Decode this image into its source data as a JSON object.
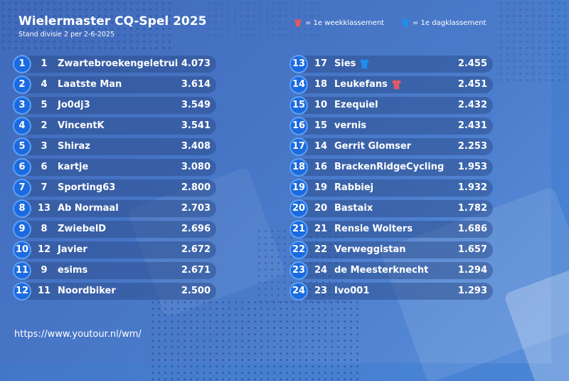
{
  "header": {
    "title": "Wielermaster CQ-Spel 2025",
    "subtitle": "Stand divisie 2 per 2-6-2025"
  },
  "legend": {
    "week": "= 1e weekklassement",
    "day": "= 1e dagklassement",
    "week_icon": "red-jersey-icon",
    "day_icon": "blue-jersey-icon",
    "week_color": "#e05a63",
    "day_color": "#1e8ef0"
  },
  "left": [
    {
      "pos": "1",
      "prev": "1",
      "name": "Zwartebroekengeletrui",
      "score": "4.073"
    },
    {
      "pos": "2",
      "prev": "4",
      "name": "Laatste Man",
      "score": "3.614"
    },
    {
      "pos": "3",
      "prev": "5",
      "name": "Jo0dj3",
      "score": "3.549"
    },
    {
      "pos": "4",
      "prev": "2",
      "name": "VincentK",
      "score": "3.541"
    },
    {
      "pos": "5",
      "prev": "3",
      "name": "Shiraz",
      "score": "3.408"
    },
    {
      "pos": "6",
      "prev": "6",
      "name": "kartje",
      "score": "3.080"
    },
    {
      "pos": "7",
      "prev": "7",
      "name": "Sporting63",
      "score": "2.800"
    },
    {
      "pos": "8",
      "prev": "13",
      "name": "Ab Normaal",
      "score": "2.703"
    },
    {
      "pos": "9",
      "prev": "8",
      "name": "ZwiebelD",
      "score": "2.696"
    },
    {
      "pos": "10",
      "prev": "12",
      "name": "Javier",
      "score": "2.672"
    },
    {
      "pos": "11",
      "prev": "9",
      "name": "esims",
      "score": "2.671"
    },
    {
      "pos": "12",
      "prev": "11",
      "name": "Noordbiker",
      "score": "2.500"
    }
  ],
  "right": [
    {
      "pos": "13",
      "prev": "17",
      "name": "Sies",
      "score": "2.455",
      "icon": "blue-jersey-icon"
    },
    {
      "pos": "14",
      "prev": "18",
      "name": "Leukefans",
      "score": "2.451",
      "icon": "red-jersey-icon"
    },
    {
      "pos": "15",
      "prev": "10",
      "name": "Ezequiel",
      "score": "2.432"
    },
    {
      "pos": "16",
      "prev": "15",
      "name": "vernis",
      "score": "2.431"
    },
    {
      "pos": "17",
      "prev": "14",
      "name": "Gerrit Glomser",
      "score": "2.253"
    },
    {
      "pos": "18",
      "prev": "16",
      "name": "BrackenRidgeCycling",
      "score": "1.953"
    },
    {
      "pos": "19",
      "prev": "19",
      "name": "Rabbiej",
      "score": "1.932"
    },
    {
      "pos": "20",
      "prev": "20",
      "name": "Bastaix",
      "score": "1.782"
    },
    {
      "pos": "21",
      "prev": "21",
      "name": "Rensie Wolters",
      "score": "1.686"
    },
    {
      "pos": "22",
      "prev": "22",
      "name": "Verweggistan",
      "score": "1.657"
    },
    {
      "pos": "23",
      "prev": "24",
      "name": "de Meesterknecht",
      "score": "1.294"
    },
    {
      "pos": "24",
      "prev": "23",
      "name": "Ivo001",
      "score": "1.293"
    }
  ],
  "footer": {
    "url": "https://www.youtour.nl/wm/"
  }
}
